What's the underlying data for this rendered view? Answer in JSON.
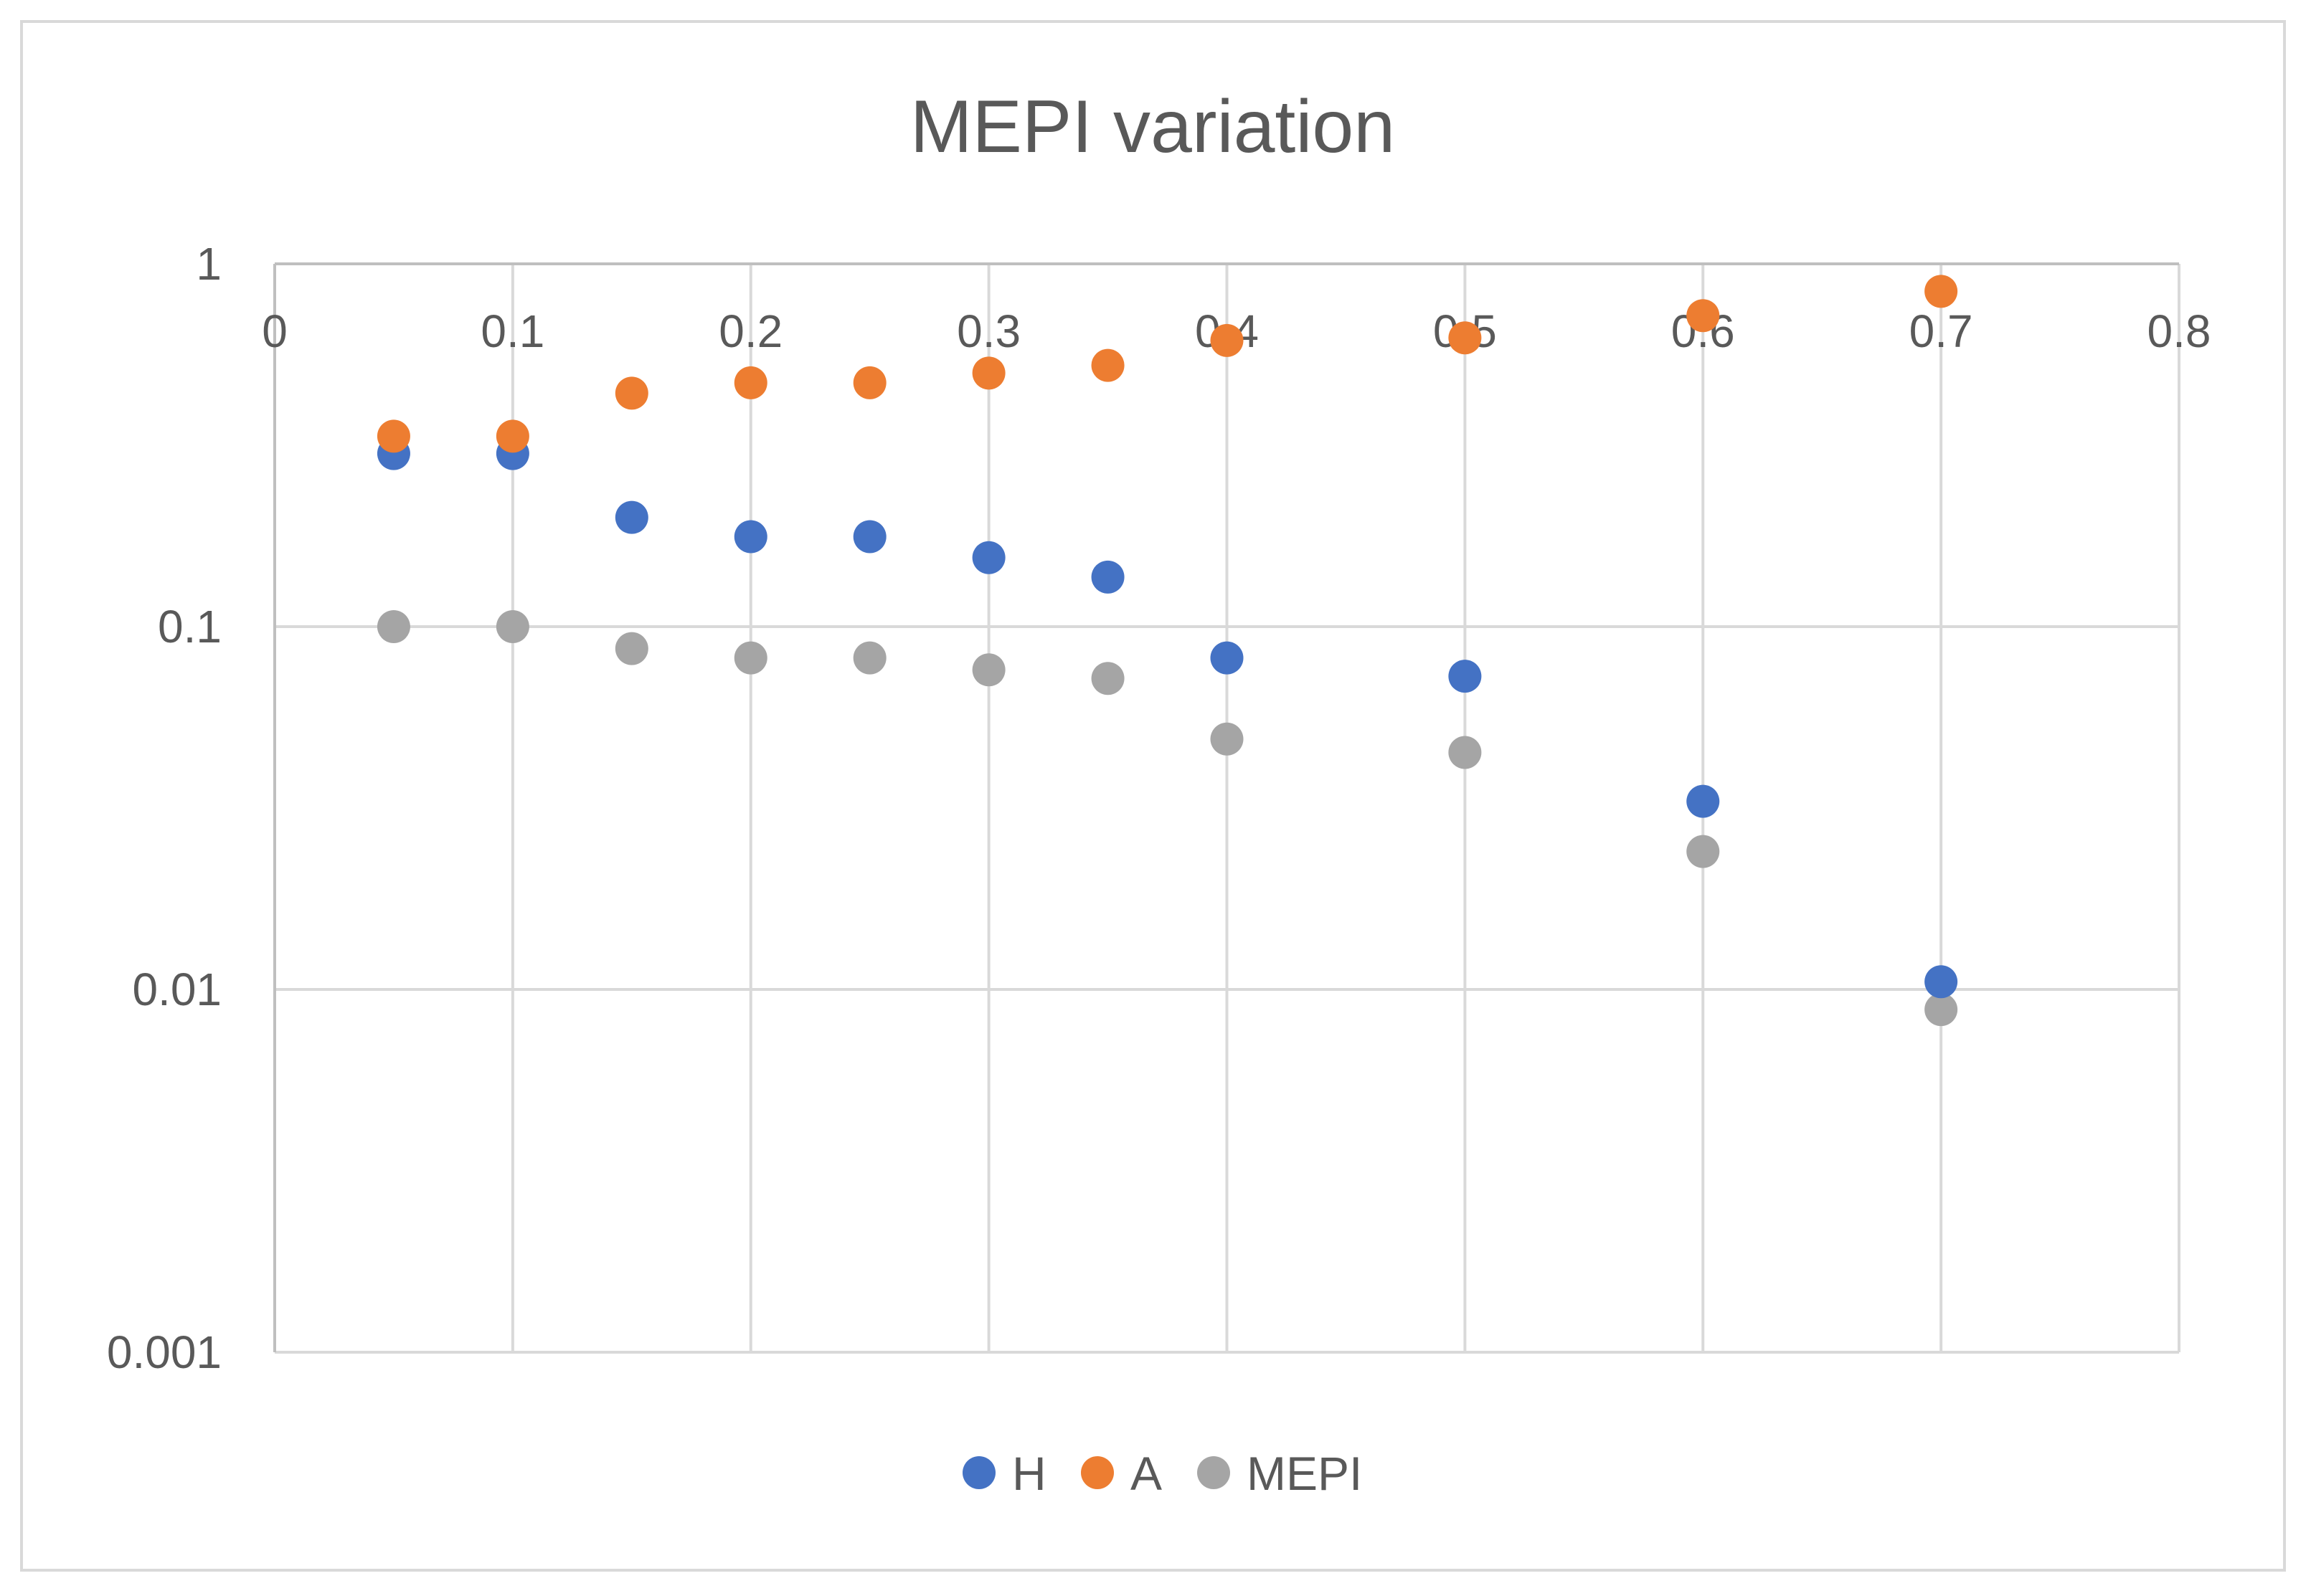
{
  "chart_data": {
    "type": "scatter",
    "title": "MEPI variation",
    "xlabel": "",
    "ylabel": "",
    "xlim": [
      0,
      0.8
    ],
    "ylim": [
      0.001,
      1
    ],
    "yscale": "log",
    "grid": true,
    "legend_position": "bottom",
    "x_ticks": [
      "0",
      "0.1",
      "0.2",
      "0.3",
      "0.4",
      "0.5",
      "0.6",
      "0.7",
      "0.8"
    ],
    "x_tick_values": [
      0,
      0.1,
      0.2,
      0.3,
      0.4,
      0.5,
      0.6,
      0.7,
      0.8
    ],
    "y_ticks": [
      "1",
      "0.1",
      "0.01",
      "0.001"
    ],
    "y_tick_values": [
      1,
      0.1,
      0.01,
      0.001
    ],
    "x": [
      0.05,
      0.1,
      0.15,
      0.2,
      0.25,
      0.3,
      0.35,
      0.4,
      0.5,
      0.6,
      0.7
    ],
    "series": [
      {
        "name": "H",
        "color": "#4472C4",
        "values": [
          0.3,
          0.3,
          0.2,
          0.177,
          0.177,
          0.155,
          0.137,
          0.082,
          0.073,
          0.033,
          0.0105
        ]
      },
      {
        "name": "A",
        "color": "#ED7D31",
        "values": [
          0.335,
          0.335,
          0.44,
          0.47,
          0.47,
          0.5,
          0.525,
          0.615,
          0.625,
          0.72,
          0.84
        ]
      },
      {
        "name": "MEPI",
        "color": "#A5A5A5",
        "values": [
          0.1,
          0.1,
          0.087,
          0.082,
          0.082,
          0.076,
          0.072,
          0.049,
          0.045,
          0.024,
          0.0088
        ]
      }
    ]
  }
}
